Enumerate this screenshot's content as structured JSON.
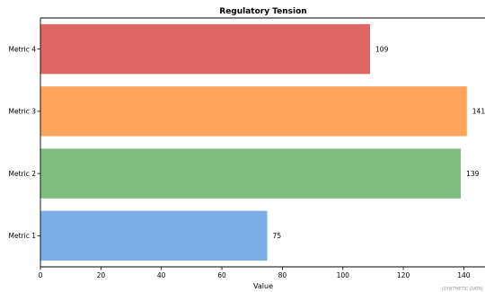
{
  "chart_data": {
    "type": "bar",
    "orientation": "horizontal",
    "title": "Regulatory Tension",
    "xlabel": "Value",
    "ylabel": "",
    "categories": [
      "Metric 1",
      "Metric 2",
      "Metric 3",
      "Metric 4"
    ],
    "values": [
      75,
      139,
      141,
      109
    ],
    "colors": [
      "#7eaee8",
      "#7ebf80",
      "#fda55a",
      "#e06666"
    ],
    "xlim": [
      0,
      147
    ],
    "xticks": [
      0,
      20,
      40,
      60,
      80,
      100,
      120,
      140
    ],
    "grid": false,
    "watermark": "(SYNTHETIC DATA)"
  }
}
